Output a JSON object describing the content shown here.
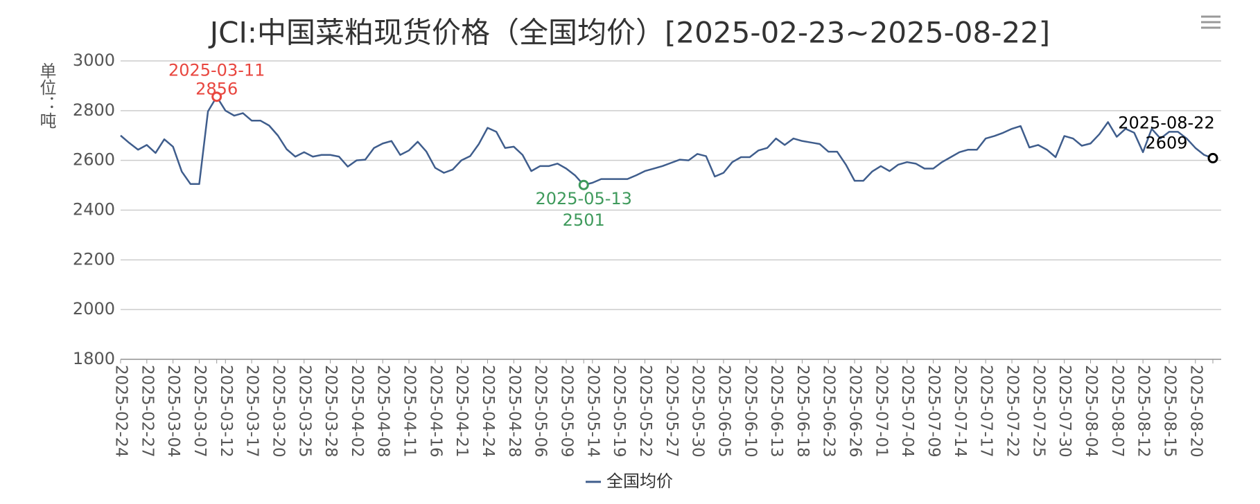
{
  "chart_data": {
    "type": "line",
    "title": "JCI:中国菜粕现货价格（全国均价）[2025-02-23~2025-08-22]",
    "y_label": "单位：吨",
    "categories": [
      "2025-02-24",
      null,
      null,
      "2025-02-27",
      null,
      null,
      "2025-03-04",
      null,
      null,
      "2025-03-07",
      null,
      "2025-03-11",
      "2025-03-12",
      null,
      null,
      "2025-03-17",
      null,
      null,
      "2025-03-20",
      null,
      null,
      "2025-03-25",
      null,
      null,
      "2025-03-28",
      null,
      null,
      "2025-04-02",
      null,
      null,
      "2025-04-08",
      null,
      null,
      "2025-04-11",
      null,
      null,
      "2025-04-16",
      null,
      null,
      "2025-04-21",
      null,
      null,
      "2025-04-24",
      null,
      null,
      "2025-04-28",
      null,
      null,
      "2025-05-06",
      null,
      null,
      "2025-05-09",
      null,
      "2025-05-13",
      "2025-05-14",
      null,
      null,
      "2025-05-19",
      null,
      null,
      "2025-05-22",
      null,
      null,
      "2025-05-27",
      null,
      null,
      "2025-05-30",
      null,
      null,
      "2025-06-05",
      null,
      null,
      "2025-06-10",
      null,
      null,
      "2025-06-13",
      null,
      null,
      "2025-06-18",
      null,
      null,
      "2025-06-23",
      null,
      null,
      "2025-06-26",
      null,
      null,
      "2025-07-01",
      null,
      null,
      "2025-07-04",
      null,
      null,
      "2025-07-09",
      null,
      null,
      "2025-07-14",
      null,
      null,
      "2025-07-17",
      null,
      null,
      "2025-07-22",
      null,
      null,
      "2025-07-25",
      null,
      null,
      "2025-07-30",
      null,
      null,
      "2025-08-04",
      null,
      null,
      "2025-08-07",
      null,
      null,
      "2025-08-12",
      null,
      null,
      "2025-08-15",
      null,
      null,
      "2025-08-20",
      null,
      "2025-08-22"
    ],
    "series": [
      {
        "name": "全国均价",
        "color": "#3f5d8c",
        "values": [
          2700,
          2670,
          2643,
          2662,
          2630,
          2685,
          2655,
          2555,
          2505,
          2505,
          2797,
          2856,
          2800,
          2780,
          2790,
          2760,
          2760,
          2740,
          2700,
          2645,
          2615,
          2633,
          2615,
          2622,
          2622,
          2615,
          2575,
          2600,
          2603,
          2650,
          2668,
          2678,
          2622,
          2640,
          2675,
          2635,
          2570,
          2550,
          2563,
          2600,
          2617,
          2666,
          2731,
          2715,
          2650,
          2655,
          2622,
          2557,
          2577,
          2577,
          2587,
          2567,
          2540,
          2501,
          2510,
          2525,
          2525,
          2525,
          2525,
          2540,
          2557,
          2567,
          2577,
          2590,
          2603,
          2600,
          2626,
          2617,
          2535,
          2550,
          2593,
          2613,
          2613,
          2640,
          2650,
          2688,
          2662,
          2688,
          2678,
          2672,
          2666,
          2635,
          2635,
          2583,
          2518,
          2518,
          2555,
          2577,
          2557,
          2583,
          2593,
          2587,
          2567,
          2567,
          2593,
          2613,
          2633,
          2643,
          2643,
          2688,
          2698,
          2711,
          2727,
          2738,
          2652,
          2662,
          2643,
          2613,
          2698,
          2688,
          2659,
          2668,
          2705,
          2754,
          2695,
          2727,
          2711,
          2633,
          2727,
          2688,
          2715,
          2715,
          2688,
          2650,
          2622,
          2609
        ]
      }
    ],
    "ylim": [
      1800,
      3000
    ],
    "yticks": [
      1800,
      2000,
      2200,
      2400,
      2600,
      2800,
      3000
    ],
    "grid": true,
    "max_color": "#e8463f",
    "min_color": "#3f9a5c",
    "last_color": "#000000"
  }
}
